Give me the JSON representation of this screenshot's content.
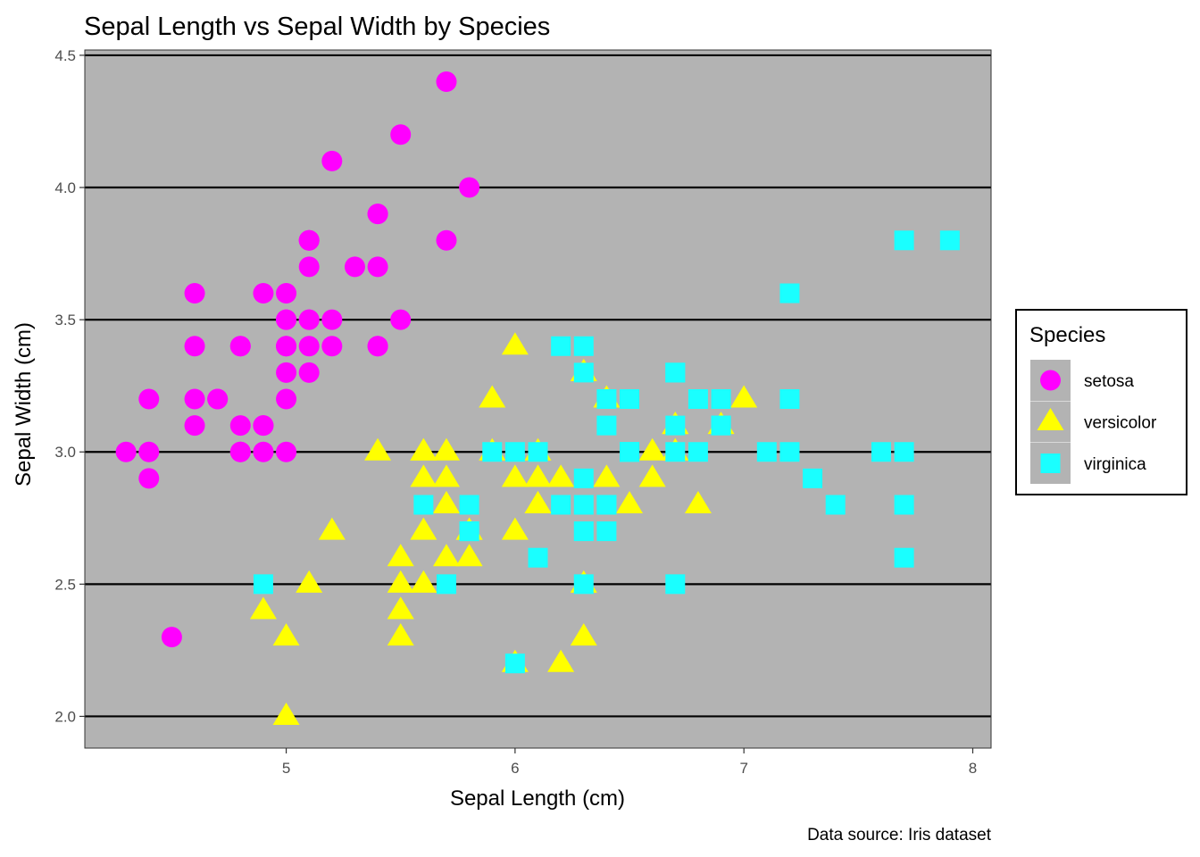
{
  "chart_data": {
    "type": "scatter",
    "title": "Sepal Length vs Sepal Width by Species",
    "xlabel": "Sepal Length (cm)",
    "ylabel": "Sepal Width (cm)",
    "caption": "Data source: Iris dataset",
    "xlim": [
      4.12,
      8.08
    ],
    "ylim": [
      1.88,
      4.52
    ],
    "x_ticks": [
      5,
      6,
      7,
      8
    ],
    "y_ticks": [
      2.0,
      2.5,
      3.0,
      3.5,
      4.0,
      4.5
    ],
    "x_tick_labels": [
      "5",
      "6",
      "7",
      "8"
    ],
    "y_tick_labels": [
      "2.0",
      "2.5",
      "3.0",
      "3.5",
      "4.0",
      "4.5"
    ],
    "grid": "horizontal major lines",
    "panel_background": "#b3b3b3",
    "legend": {
      "title": "Species",
      "position": "right"
    },
    "series": [
      {
        "name": "setosa",
        "marker": "circle",
        "color": "#ff00ff",
        "points": [
          [
            5.1,
            3.5
          ],
          [
            4.9,
            3.0
          ],
          [
            4.7,
            3.2
          ],
          [
            4.6,
            3.1
          ],
          [
            5.0,
            3.6
          ],
          [
            5.4,
            3.9
          ],
          [
            4.6,
            3.4
          ],
          [
            5.0,
            3.4
          ],
          [
            4.4,
            2.9
          ],
          [
            4.9,
            3.1
          ],
          [
            5.4,
            3.7
          ],
          [
            4.8,
            3.4
          ],
          [
            4.8,
            3.0
          ],
          [
            4.3,
            3.0
          ],
          [
            5.8,
            4.0
          ],
          [
            5.7,
            4.4
          ],
          [
            5.4,
            3.9
          ],
          [
            5.1,
            3.5
          ],
          [
            5.7,
            3.8
          ],
          [
            5.1,
            3.8
          ],
          [
            5.4,
            3.4
          ],
          [
            5.1,
            3.7
          ],
          [
            4.6,
            3.6
          ],
          [
            5.1,
            3.3
          ],
          [
            4.8,
            3.4
          ],
          [
            5.0,
            3.0
          ],
          [
            5.0,
            3.4
          ],
          [
            5.2,
            3.5
          ],
          [
            5.2,
            3.4
          ],
          [
            4.7,
            3.2
          ],
          [
            4.8,
            3.1
          ],
          [
            5.4,
            3.4
          ],
          [
            5.2,
            4.1
          ],
          [
            5.5,
            4.2
          ],
          [
            4.9,
            3.1
          ],
          [
            5.0,
            3.2
          ],
          [
            5.5,
            3.5
          ],
          [
            4.9,
            3.6
          ],
          [
            4.4,
            3.0
          ],
          [
            5.1,
            3.4
          ],
          [
            5.0,
            3.5
          ],
          [
            4.5,
            2.3
          ],
          [
            4.4,
            3.2
          ],
          [
            5.0,
            3.5
          ],
          [
            5.1,
            3.8
          ],
          [
            4.8,
            3.0
          ],
          [
            5.1,
            3.8
          ],
          [
            4.6,
            3.2
          ],
          [
            5.3,
            3.7
          ],
          [
            5.0,
            3.3
          ]
        ]
      },
      {
        "name": "versicolor",
        "marker": "triangle",
        "color": "#ffff00",
        "points": [
          [
            7.0,
            3.2
          ],
          [
            6.4,
            3.2
          ],
          [
            6.9,
            3.1
          ],
          [
            5.5,
            2.3
          ],
          [
            6.5,
            2.8
          ],
          [
            5.7,
            2.8
          ],
          [
            6.3,
            3.3
          ],
          [
            4.9,
            2.4
          ],
          [
            6.6,
            2.9
          ],
          [
            5.2,
            2.7
          ],
          [
            5.0,
            2.0
          ],
          [
            5.9,
            3.0
          ],
          [
            6.0,
            2.2
          ],
          [
            6.1,
            2.9
          ],
          [
            5.6,
            2.9
          ],
          [
            6.7,
            3.1
          ],
          [
            5.6,
            3.0
          ],
          [
            5.8,
            2.7
          ],
          [
            6.2,
            2.2
          ],
          [
            5.6,
            2.5
          ],
          [
            5.9,
            3.2
          ],
          [
            6.1,
            2.8
          ],
          [
            6.3,
            2.5
          ],
          [
            6.1,
            2.8
          ],
          [
            6.4,
            2.9
          ],
          [
            6.6,
            3.0
          ],
          [
            6.8,
            2.8
          ],
          [
            6.7,
            3.0
          ],
          [
            6.0,
            2.9
          ],
          [
            5.7,
            2.6
          ],
          [
            5.5,
            2.4
          ],
          [
            5.5,
            2.4
          ],
          [
            5.8,
            2.7
          ],
          [
            6.0,
            2.7
          ],
          [
            5.4,
            3.0
          ],
          [
            6.0,
            3.4
          ],
          [
            6.7,
            3.1
          ],
          [
            6.3,
            2.3
          ],
          [
            5.6,
            3.0
          ],
          [
            5.5,
            2.5
          ],
          [
            5.5,
            2.6
          ],
          [
            6.1,
            3.0
          ],
          [
            5.8,
            2.6
          ],
          [
            5.0,
            2.3
          ],
          [
            5.6,
            2.7
          ],
          [
            5.7,
            3.0
          ],
          [
            5.7,
            2.9
          ],
          [
            6.2,
            2.9
          ],
          [
            5.1,
            2.5
          ],
          [
            5.7,
            2.8
          ]
        ]
      },
      {
        "name": "virginica",
        "marker": "square",
        "color": "#1affff",
        "points": [
          [
            6.3,
            3.3
          ],
          [
            5.8,
            2.7
          ],
          [
            7.1,
            3.0
          ],
          [
            6.3,
            2.9
          ],
          [
            6.5,
            3.0
          ],
          [
            7.6,
            3.0
          ],
          [
            4.9,
            2.5
          ],
          [
            7.3,
            2.9
          ],
          [
            6.7,
            2.5
          ],
          [
            7.2,
            3.6
          ],
          [
            6.5,
            3.2
          ],
          [
            6.4,
            2.7
          ],
          [
            6.8,
            3.0
          ],
          [
            5.7,
            2.5
          ],
          [
            5.8,
            2.8
          ],
          [
            6.4,
            3.2
          ],
          [
            6.5,
            3.0
          ],
          [
            7.7,
            3.8
          ],
          [
            7.7,
            2.6
          ],
          [
            6.0,
            2.2
          ],
          [
            6.9,
            3.2
          ],
          [
            5.6,
            2.8
          ],
          [
            7.7,
            2.8
          ],
          [
            6.3,
            2.7
          ],
          [
            6.7,
            3.3
          ],
          [
            7.2,
            3.2
          ],
          [
            6.2,
            2.8
          ],
          [
            6.1,
            3.0
          ],
          [
            6.4,
            2.8
          ],
          [
            7.2,
            3.0
          ],
          [
            7.4,
            2.8
          ],
          [
            7.9,
            3.8
          ],
          [
            6.4,
            2.8
          ],
          [
            6.3,
            2.8
          ],
          [
            6.1,
            2.6
          ],
          [
            7.7,
            3.0
          ],
          [
            6.3,
            3.4
          ],
          [
            6.4,
            3.1
          ],
          [
            6.0,
            3.0
          ],
          [
            6.9,
            3.1
          ],
          [
            6.7,
            3.1
          ],
          [
            6.9,
            3.1
          ],
          [
            5.8,
            2.7
          ],
          [
            6.8,
            3.2
          ],
          [
            6.7,
            3.3
          ],
          [
            6.7,
            3.0
          ],
          [
            6.3,
            2.5
          ],
          [
            6.5,
            3.0
          ],
          [
            6.2,
            3.4
          ],
          [
            5.9,
            3.0
          ]
        ]
      }
    ]
  }
}
